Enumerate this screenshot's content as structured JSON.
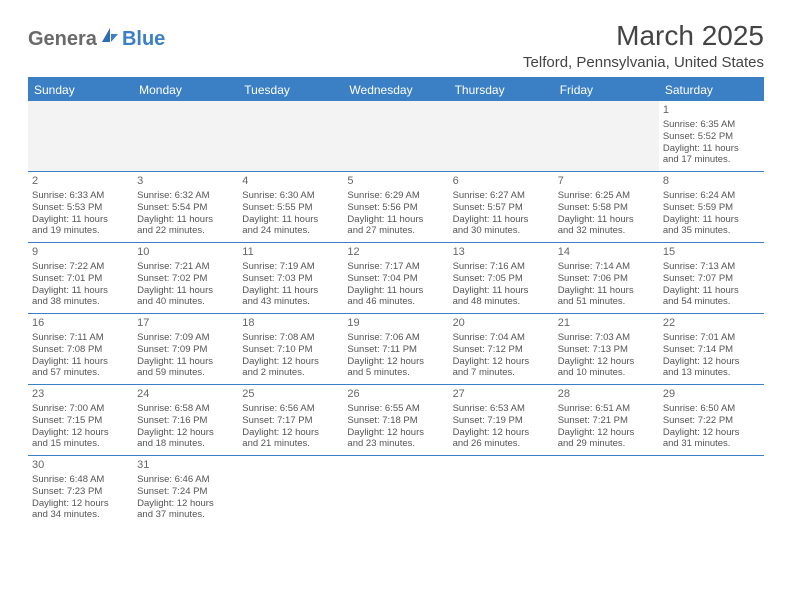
{
  "logo": {
    "part1": "Genera",
    "part2": "Blue"
  },
  "title": "March 2025",
  "location": "Telford, Pennsylvania, United States",
  "colors": {
    "header_bg": "#3b7fc4",
    "header_text": "#ffffff",
    "border": "#3b7fc4",
    "inactive_bg": "#f3f3f3",
    "text": "#555555",
    "title_text": "#444444"
  },
  "day_headers": [
    "Sunday",
    "Monday",
    "Tuesday",
    "Wednesday",
    "Thursday",
    "Friday",
    "Saturday"
  ],
  "weeks": [
    [
      {
        "blank": true
      },
      {
        "blank": true
      },
      {
        "blank": true
      },
      {
        "blank": true
      },
      {
        "blank": true
      },
      {
        "blank": true
      },
      {
        "num": "1",
        "sunrise": "Sunrise: 6:35 AM",
        "sunset": "Sunset: 5:52 PM",
        "day1": "Daylight: 11 hours",
        "day2": "and 17 minutes."
      }
    ],
    [
      {
        "num": "2",
        "sunrise": "Sunrise: 6:33 AM",
        "sunset": "Sunset: 5:53 PM",
        "day1": "Daylight: 11 hours",
        "day2": "and 19 minutes."
      },
      {
        "num": "3",
        "sunrise": "Sunrise: 6:32 AM",
        "sunset": "Sunset: 5:54 PM",
        "day1": "Daylight: 11 hours",
        "day2": "and 22 minutes."
      },
      {
        "num": "4",
        "sunrise": "Sunrise: 6:30 AM",
        "sunset": "Sunset: 5:55 PM",
        "day1": "Daylight: 11 hours",
        "day2": "and 24 minutes."
      },
      {
        "num": "5",
        "sunrise": "Sunrise: 6:29 AM",
        "sunset": "Sunset: 5:56 PM",
        "day1": "Daylight: 11 hours",
        "day2": "and 27 minutes."
      },
      {
        "num": "6",
        "sunrise": "Sunrise: 6:27 AM",
        "sunset": "Sunset: 5:57 PM",
        "day1": "Daylight: 11 hours",
        "day2": "and 30 minutes."
      },
      {
        "num": "7",
        "sunrise": "Sunrise: 6:25 AM",
        "sunset": "Sunset: 5:58 PM",
        "day1": "Daylight: 11 hours",
        "day2": "and 32 minutes."
      },
      {
        "num": "8",
        "sunrise": "Sunrise: 6:24 AM",
        "sunset": "Sunset: 5:59 PM",
        "day1": "Daylight: 11 hours",
        "day2": "and 35 minutes."
      }
    ],
    [
      {
        "num": "9",
        "sunrise": "Sunrise: 7:22 AM",
        "sunset": "Sunset: 7:01 PM",
        "day1": "Daylight: 11 hours",
        "day2": "and 38 minutes."
      },
      {
        "num": "10",
        "sunrise": "Sunrise: 7:21 AM",
        "sunset": "Sunset: 7:02 PM",
        "day1": "Daylight: 11 hours",
        "day2": "and 40 minutes."
      },
      {
        "num": "11",
        "sunrise": "Sunrise: 7:19 AM",
        "sunset": "Sunset: 7:03 PM",
        "day1": "Daylight: 11 hours",
        "day2": "and 43 minutes."
      },
      {
        "num": "12",
        "sunrise": "Sunrise: 7:17 AM",
        "sunset": "Sunset: 7:04 PM",
        "day1": "Daylight: 11 hours",
        "day2": "and 46 minutes."
      },
      {
        "num": "13",
        "sunrise": "Sunrise: 7:16 AM",
        "sunset": "Sunset: 7:05 PM",
        "day1": "Daylight: 11 hours",
        "day2": "and 48 minutes."
      },
      {
        "num": "14",
        "sunrise": "Sunrise: 7:14 AM",
        "sunset": "Sunset: 7:06 PM",
        "day1": "Daylight: 11 hours",
        "day2": "and 51 minutes."
      },
      {
        "num": "15",
        "sunrise": "Sunrise: 7:13 AM",
        "sunset": "Sunset: 7:07 PM",
        "day1": "Daylight: 11 hours",
        "day2": "and 54 minutes."
      }
    ],
    [
      {
        "num": "16",
        "sunrise": "Sunrise: 7:11 AM",
        "sunset": "Sunset: 7:08 PM",
        "day1": "Daylight: 11 hours",
        "day2": "and 57 minutes."
      },
      {
        "num": "17",
        "sunrise": "Sunrise: 7:09 AM",
        "sunset": "Sunset: 7:09 PM",
        "day1": "Daylight: 11 hours",
        "day2": "and 59 minutes."
      },
      {
        "num": "18",
        "sunrise": "Sunrise: 7:08 AM",
        "sunset": "Sunset: 7:10 PM",
        "day1": "Daylight: 12 hours",
        "day2": "and 2 minutes."
      },
      {
        "num": "19",
        "sunrise": "Sunrise: 7:06 AM",
        "sunset": "Sunset: 7:11 PM",
        "day1": "Daylight: 12 hours",
        "day2": "and 5 minutes."
      },
      {
        "num": "20",
        "sunrise": "Sunrise: 7:04 AM",
        "sunset": "Sunset: 7:12 PM",
        "day1": "Daylight: 12 hours",
        "day2": "and 7 minutes."
      },
      {
        "num": "21",
        "sunrise": "Sunrise: 7:03 AM",
        "sunset": "Sunset: 7:13 PM",
        "day1": "Daylight: 12 hours",
        "day2": "and 10 minutes."
      },
      {
        "num": "22",
        "sunrise": "Sunrise: 7:01 AM",
        "sunset": "Sunset: 7:14 PM",
        "day1": "Daylight: 12 hours",
        "day2": "and 13 minutes."
      }
    ],
    [
      {
        "num": "23",
        "sunrise": "Sunrise: 7:00 AM",
        "sunset": "Sunset: 7:15 PM",
        "day1": "Daylight: 12 hours",
        "day2": "and 15 minutes."
      },
      {
        "num": "24",
        "sunrise": "Sunrise: 6:58 AM",
        "sunset": "Sunset: 7:16 PM",
        "day1": "Daylight: 12 hours",
        "day2": "and 18 minutes."
      },
      {
        "num": "25",
        "sunrise": "Sunrise: 6:56 AM",
        "sunset": "Sunset: 7:17 PM",
        "day1": "Daylight: 12 hours",
        "day2": "and 21 minutes."
      },
      {
        "num": "26",
        "sunrise": "Sunrise: 6:55 AM",
        "sunset": "Sunset: 7:18 PM",
        "day1": "Daylight: 12 hours",
        "day2": "and 23 minutes."
      },
      {
        "num": "27",
        "sunrise": "Sunrise: 6:53 AM",
        "sunset": "Sunset: 7:19 PM",
        "day1": "Daylight: 12 hours",
        "day2": "and 26 minutes."
      },
      {
        "num": "28",
        "sunrise": "Sunrise: 6:51 AM",
        "sunset": "Sunset: 7:21 PM",
        "day1": "Daylight: 12 hours",
        "day2": "and 29 minutes."
      },
      {
        "num": "29",
        "sunrise": "Sunrise: 6:50 AM",
        "sunset": "Sunset: 7:22 PM",
        "day1": "Daylight: 12 hours",
        "day2": "and 31 minutes."
      }
    ],
    [
      {
        "num": "30",
        "sunrise": "Sunrise: 6:48 AM",
        "sunset": "Sunset: 7:23 PM",
        "day1": "Daylight: 12 hours",
        "day2": "and 34 minutes."
      },
      {
        "num": "31",
        "sunrise": "Sunrise: 6:46 AM",
        "sunset": "Sunset: 7:24 PM",
        "day1": "Daylight: 12 hours",
        "day2": "and 37 minutes."
      },
      {
        "blank": true
      },
      {
        "blank": true
      },
      {
        "blank": true
      },
      {
        "blank": true
      },
      {
        "blank": true
      }
    ]
  ]
}
